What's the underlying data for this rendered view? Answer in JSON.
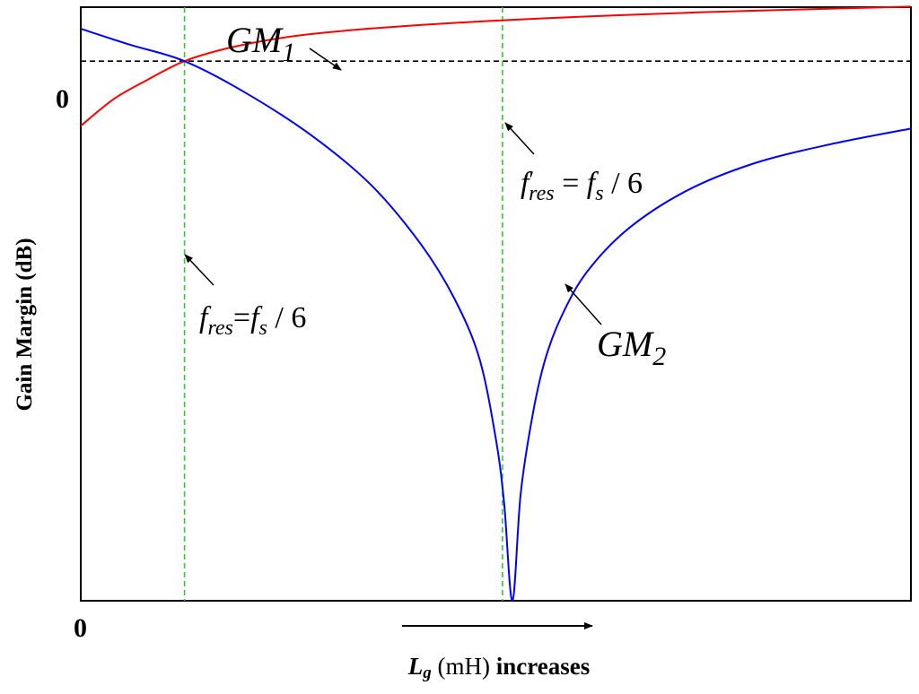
{
  "chart_data": {
    "type": "line",
    "ylabel": "Gain Margin (dB)",
    "xlabel": {
      "var": "L",
      "var_sub": "g",
      "unit": " (mH) ",
      "rest": "increases"
    },
    "x_tick_labels": [
      "0"
    ],
    "y_tick_labels": [
      "0"
    ],
    "xlim": [
      0,
      1
    ],
    "ylim": [
      -1,
      0.1
    ],
    "reference_line_y": 0,
    "series": [
      {
        "name": "GM",
        "name_sub": "1",
        "color": "#ff0000",
        "x": [
          0,
          0.04,
          0.08,
          0.125,
          0.18,
          0.25,
          0.33,
          0.42,
          0.5,
          0.6,
          0.7,
          0.8,
          0.9,
          1.0
        ],
        "y": [
          -0.12,
          -0.07,
          -0.035,
          0,
          0.025,
          0.045,
          0.058,
          0.068,
          0.075,
          0.082,
          0.088,
          0.093,
          0.097,
          0.101
        ]
      },
      {
        "name": "GM",
        "name_sub": "2",
        "color": "#0000ff",
        "x": [
          0,
          0.06,
          0.125,
          0.2,
          0.28,
          0.35,
          0.41,
          0.45,
          0.48,
          0.5,
          0.51,
          0.52,
          0.53,
          0.545,
          0.56,
          0.58,
          0.61,
          0.66,
          0.73,
          0.81,
          0.9,
          1.0
        ],
        "y": [
          0.06,
          0.03,
          0,
          -0.06,
          -0.14,
          -0.23,
          -0.34,
          -0.44,
          -0.55,
          -0.7,
          -0.82,
          -1.0,
          -0.8,
          -0.65,
          -0.55,
          -0.47,
          -0.39,
          -0.31,
          -0.24,
          -0.19,
          -0.155,
          -0.125
        ]
      }
    ],
    "vlines": [
      {
        "x": 0.125,
        "color": "#33cc33"
      },
      {
        "x": 0.508,
        "color": "#33cc33"
      }
    ],
    "annotations": {
      "fres": {
        "f": "f",
        "sub": "res",
        "eq": "=",
        "f2": "f",
        "sub2": "s",
        "tail": " / 6"
      },
      "fres_prime": {
        "f": "f",
        "prime": "′",
        "sub": "res",
        "eq": " = ",
        "f2": "f",
        "sub2": "s",
        "tail": " / 6"
      }
    }
  }
}
